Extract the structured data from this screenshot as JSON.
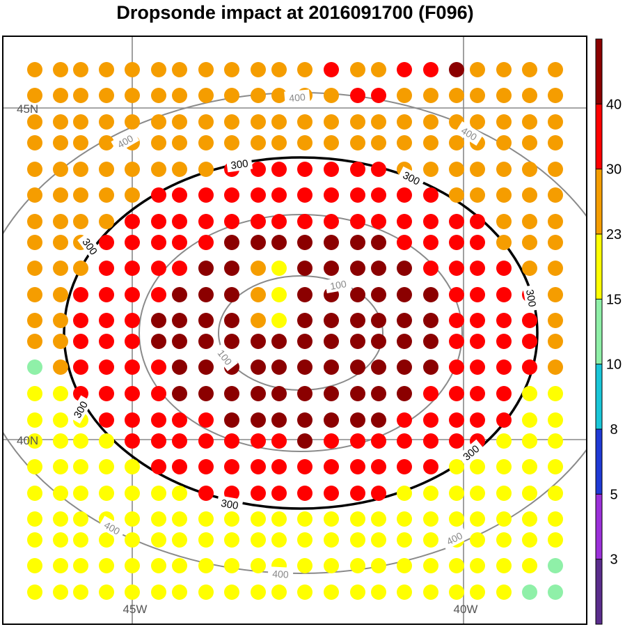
{
  "title": "Dropsonde impact at 2016091700 (F096)",
  "map": {
    "gridlines": [
      {
        "label": "45N",
        "type": "lat"
      },
      {
        "label": "40N",
        "type": "lat"
      },
      {
        "label": "45W",
        "type": "lon"
      },
      {
        "label": "40W",
        "type": "lon"
      }
    ],
    "contours": [
      {
        "value": "100",
        "color": "#8a8a8a",
        "labels": [
          "100",
          "100"
        ]
      },
      {
        "value": "200",
        "color": "#8a8a8a",
        "labels": []
      },
      {
        "value": "300",
        "color": "#000000",
        "labels": [
          "300",
          "300",
          "300",
          "300",
          "300",
          "300",
          "300"
        ]
      },
      {
        "value": "400",
        "color": "#8a8a8a",
        "labels": [
          "400",
          "400",
          "400",
          "400",
          "400",
          "400"
        ]
      }
    ]
  },
  "colorbar": {
    "levels": [
      "3",
      "5",
      "8",
      "10",
      "15",
      "23",
      "30",
      "40"
    ],
    "colors": [
      "#5a2d8c",
      "#9b30d9",
      "#1f3ad6",
      "#19c6d8",
      "#8ff0a8",
      "#ffff00",
      "#f59d00",
      "#ff0000",
      "#8b0000"
    ]
  },
  "chart_data": {
    "type": "scatter",
    "title": "Dropsonde impact at 2016091700 (F096)",
    "x": [
      -48.0,
      -47.4,
      -46.8,
      -46.2,
      -45.6,
      -45.0,
      -44.4,
      -43.8,
      -43.2,
      -42.6,
      -42.0,
      -41.4,
      -40.8,
      -40.2,
      -39.6,
      -38.4,
      -37.8
    ],
    "y": [
      46.6,
      46.0,
      45.4,
      44.8,
      44.2,
      43.6,
      43.0,
      42.4,
      41.8,
      41.2,
      40.6,
      40.0,
      39.4,
      38.8,
      38.2,
      37.6,
      37.0
    ],
    "value_categories": [
      "<3",
      "3-5",
      "5-8",
      "8-10",
      "10-15",
      "15-23",
      "23-30",
      "30-40",
      ">40"
    ],
    "note_levels": [
      3,
      5,
      8,
      10,
      15,
      23,
      30,
      40
    ]
  }
}
